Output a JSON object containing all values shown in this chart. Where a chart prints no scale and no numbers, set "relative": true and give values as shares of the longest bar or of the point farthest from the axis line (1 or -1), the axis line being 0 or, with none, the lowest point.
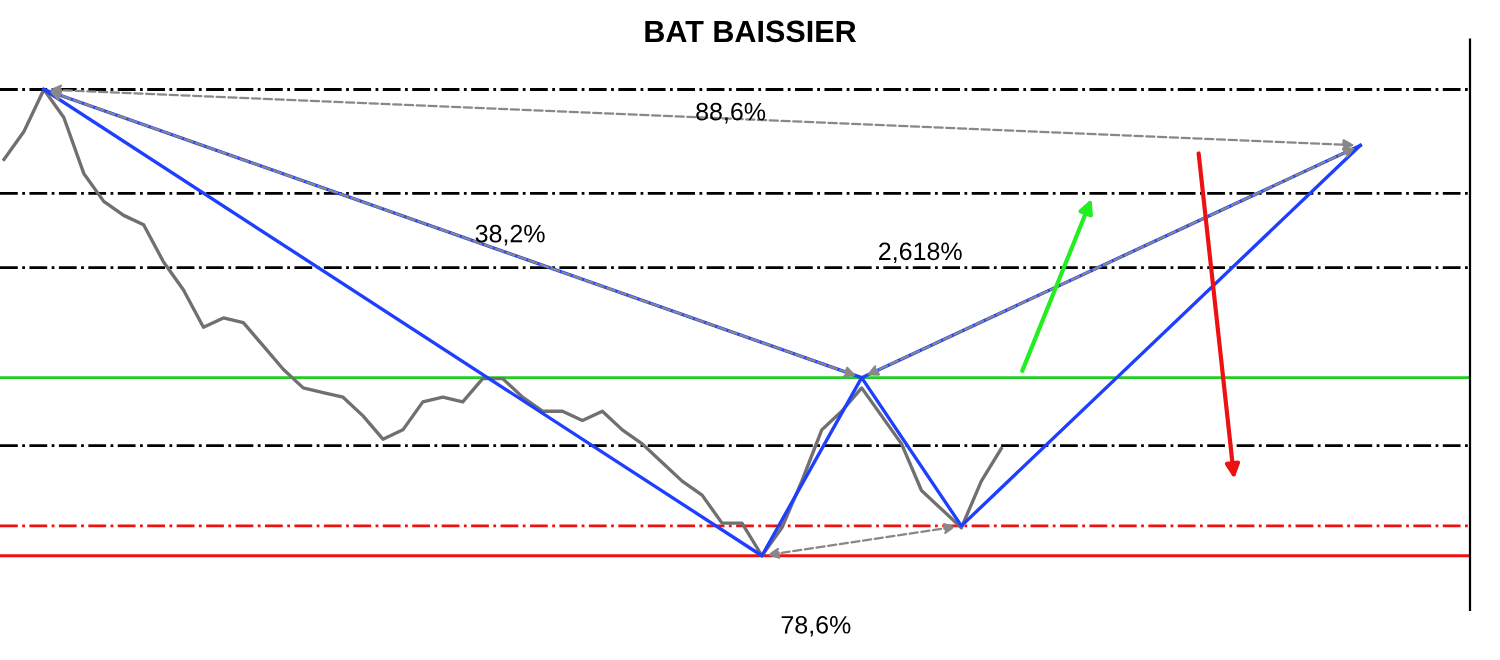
{
  "chart_data": {
    "type": "line",
    "title": "BAT BAISSIER",
    "relative": true,
    "categories": [
      null,
      null,
      null,
      null,
      null,
      null,
      null,
      null,
      null,
      null,
      null,
      null,
      null,
      null,
      null,
      null,
      null,
      null,
      null,
      null,
      null,
      null,
      null,
      null,
      null,
      null,
      null,
      null,
      null,
      null,
      null,
      null,
      null,
      null,
      null,
      null,
      null,
      null,
      null,
      null,
      null,
      null,
      null,
      null,
      null,
      null,
      null,
      null,
      null,
      null,
      null,
      null,
      null,
      null,
      null,
      null,
      null,
      null,
      null,
      null,
      null,
      null,
      null,
      null,
      null,
      null,
      null,
      null,
      null,
      null,
      null,
      null,
      null,
      null
    ],
    "series": [
      {
        "color": "#707070",
        "values": [
          0.85,
          0.91,
          1.0,
          0.94,
          0.82,
          0.76,
          0.73,
          0.71,
          0.63,
          0.57,
          0.49,
          0.51,
          0.5,
          0.45,
          0.4,
          0.36,
          0.35,
          0.34,
          0.3,
          0.25,
          0.27,
          0.33,
          0.34,
          0.33,
          0.38,
          0.38,
          0.34,
          0.31,
          0.31,
          0.29,
          0.31,
          0.27,
          0.24,
          0.2,
          0.16,
          0.13,
          0.07,
          0.07,
          0.0,
          0.06,
          0.16,
          0.27,
          0.31,
          0.36,
          0.3,
          0.24,
          0.14,
          0.1,
          0.06,
          0.16,
          0.23,
          null,
          null,
          null,
          null,
          null,
          null,
          null,
          null,
          null,
          null,
          null,
          null,
          null,
          null,
          null,
          null,
          null,
          null,
          null,
          null,
          null,
          null,
          null
        ]
      },
      {
        "color": "#1f3fff",
        "values": [
          null,
          null,
          1.0,
          null,
          null,
          null,
          null,
          null,
          null,
          null,
          null,
          null,
          null,
          null,
          null,
          null,
          null,
          null,
          null,
          null,
          null,
          null,
          null,
          null,
          null,
          null,
          null,
          null,
          null,
          null,
          null,
          null,
          null,
          null,
          null,
          null,
          null,
          null,
          0.0,
          null,
          null,
          null,
          null,
          0.382,
          null,
          null,
          null,
          null,
          0.064,
          null,
          null,
          null,
          null,
          null,
          null,
          null,
          null,
          null,
          null,
          null,
          null,
          null,
          null,
          null,
          null,
          null,
          null,
          null,
          0.88,
          null,
          null,
          null,
          null,
          null
        ]
      },
      {
        "color": "#1f3fff",
        "values": [
          null,
          null,
          1.0,
          null,
          null,
          null,
          null,
          null,
          null,
          null,
          null,
          null,
          null,
          null,
          null,
          null,
          null,
          null,
          null,
          null,
          null,
          null,
          null,
          null,
          null,
          null,
          null,
          null,
          null,
          null,
          null,
          null,
          null,
          null,
          null,
          null,
          null,
          null,
          null,
          null,
          null,
          null,
          null,
          0.382,
          null,
          null,
          null,
          null,
          null,
          null,
          null,
          null,
          null,
          null,
          null,
          null,
          null,
          null,
          null,
          null,
          null,
          null,
          null,
          null,
          null,
          null,
          null,
          null,
          0.88,
          null,
          null,
          null,
          null,
          null
        ]
      }
    ],
    "ref_lines": [
      {
        "axis": "y",
        "value": 1.0,
        "color": "#000000",
        "line_style": "dotted"
      },
      {
        "axis": "y",
        "value": 0.777,
        "color": "#000000",
        "line_style": "dotted"
      },
      {
        "axis": "y",
        "value": 0.618,
        "color": "#000000",
        "line_style": "dotted"
      },
      {
        "axis": "y",
        "value": 0.382,
        "color": "#22cc22",
        "line_style": "solid"
      },
      {
        "axis": "y",
        "value": 0.236,
        "color": "#000000",
        "line_style": "dotted"
      },
      {
        "axis": "y",
        "value": 0.064,
        "color": "#ee1111",
        "line_style": "dotted"
      },
      {
        "axis": "y",
        "value": 0.0,
        "color": "#ee1111",
        "line_style": "solid"
      }
    ],
    "annotations": [
      "88,6%",
      "38,2%",
      "2,618%",
      "78,6%"
    ],
    "legend": false
  }
}
